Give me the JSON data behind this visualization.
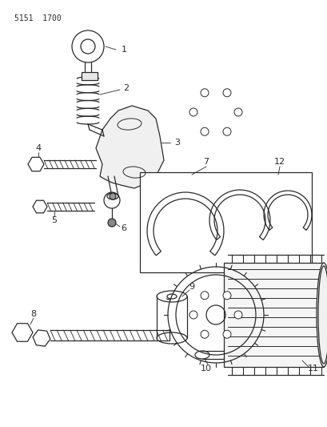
{
  "title": "5151  1700",
  "bg_color": "#ffffff",
  "line_color": "#2a2a2a",
  "text_color": "#2a2a2a",
  "fig_width": 4.1,
  "fig_height": 5.33,
  "dpi": 100,
  "xlim": [
    0,
    410
  ],
  "ylim": [
    0,
    533
  ]
}
